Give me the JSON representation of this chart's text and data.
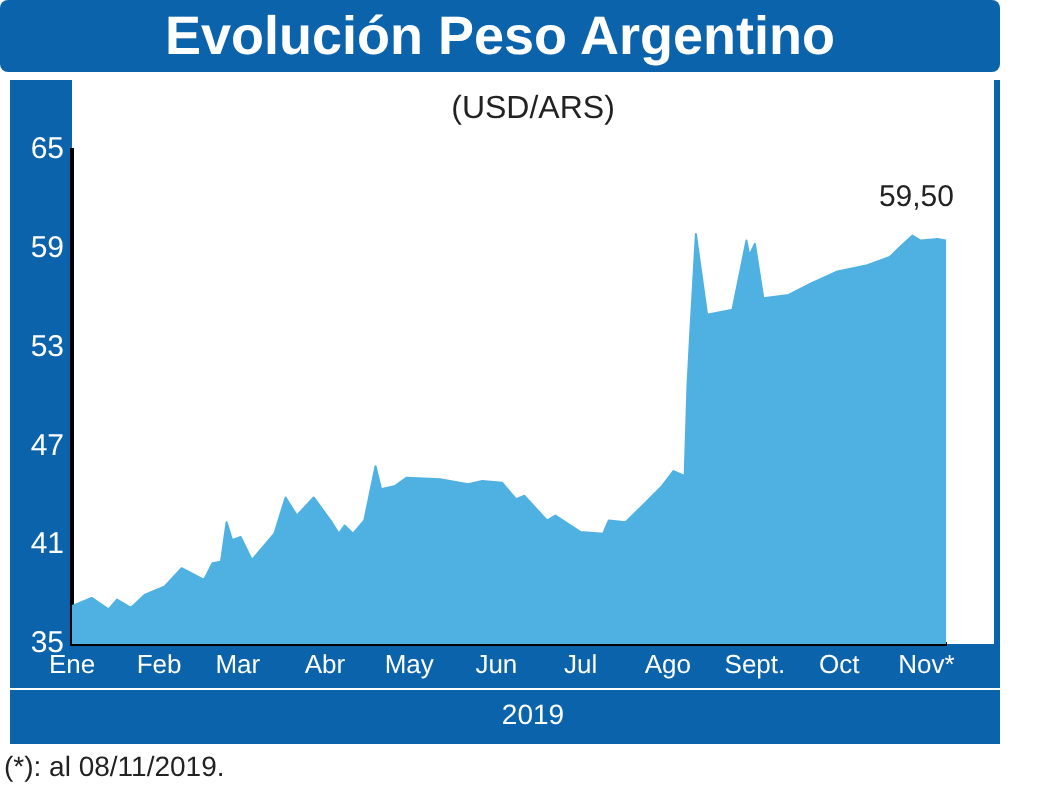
{
  "chart_data": {
    "type": "area",
    "title": "Evolución Peso Argentino",
    "subtitle": "(USD/ARS)",
    "xlabel": "2019",
    "x": [
      "2019-01-01",
      "2019-01-08",
      "2019-01-14",
      "2019-01-17",
      "2019-01-22",
      "2019-01-27",
      "2019-02-03",
      "2019-02-09",
      "2019-02-17",
      "2019-02-20",
      "2019-02-23",
      "2019-02-25",
      "2019-02-27",
      "2019-03-02",
      "2019-03-06",
      "2019-03-14",
      "2019-03-18",
      "2019-03-22",
      "2019-03-28",
      "2019-04-03",
      "2019-04-06",
      "2019-04-08",
      "2019-04-11",
      "2019-04-15",
      "2019-04-19",
      "2019-04-21",
      "2019-04-26",
      "2019-04-30",
      "2019-05-12",
      "2019-05-22",
      "2019-05-27",
      "2019-06-03",
      "2019-06-08",
      "2019-06-11",
      "2019-06-19",
      "2019-06-22",
      "2019-07-01",
      "2019-07-09",
      "2019-07-11",
      "2019-07-17",
      "2019-07-23",
      "2019-07-30",
      "2019-08-03",
      "2019-08-07",
      "2019-08-08",
      "2019-08-09",
      "2019-08-11",
      "2019-08-15",
      "2019-08-24",
      "2019-08-29",
      "2019-08-30",
      "2019-09-01",
      "2019-09-04",
      "2019-09-13",
      "2019-09-21",
      "2019-09-30",
      "2019-10-11",
      "2019-10-19",
      "2019-10-22",
      "2019-10-27",
      "2019-10-30",
      "2019-11-05",
      "2019-11-08"
    ],
    "series": [
      {
        "color": "#4fb1e2",
        "values": [
          37.3,
          37.8,
          37.1,
          37.7,
          37.2,
          38.0,
          38.5,
          39.6,
          38.9,
          39.9,
          40.0,
          42.4,
          41.3,
          41.5,
          40.1,
          41.7,
          43.9,
          42.8,
          43.9,
          42.5,
          41.7,
          42.2,
          41.7,
          42.5,
          45.8,
          44.4,
          44.6,
          45.1,
          45.0,
          44.7,
          44.9,
          44.8,
          43.8,
          44.0,
          42.5,
          42.8,
          41.8,
          41.7,
          42.5,
          42.4,
          43.4,
          44.6,
          45.5,
          45.2,
          50.7,
          53.9,
          59.9,
          55.0,
          55.3,
          59.5,
          58.6,
          59.3,
          56.0,
          56.2,
          56.9,
          57.6,
          58.0,
          58.5,
          59.0,
          59.8,
          59.5,
          59.6,
          59.5
        ]
      }
    ],
    "xlim": [
      "2019-01-01",
      "2019-11-08"
    ],
    "xticks": [
      {
        "value": "2019-01-01",
        "label": "Ene"
      },
      {
        "value": "2019-02-01",
        "label": "Feb"
      },
      {
        "value": "2019-03-01",
        "label": "Mar"
      },
      {
        "value": "2019-04-01",
        "label": "Abr"
      },
      {
        "value": "2019-05-01",
        "label": "May"
      },
      {
        "value": "2019-06-01",
        "label": "Jun"
      },
      {
        "value": "2019-07-01",
        "label": "Jul"
      },
      {
        "value": "2019-08-01",
        "label": "Ago"
      },
      {
        "value": "2019-09-01",
        "label": "Sept."
      },
      {
        "value": "2019-10-01",
        "label": "Oct"
      },
      {
        "value": "2019-11-01",
        "label": "Nov*"
      }
    ],
    "ylim": [
      35,
      65
    ],
    "yticks": [
      35,
      41,
      47,
      53,
      59,
      65
    ],
    "grid": false,
    "legend": false,
    "annotations": [
      {
        "text": "59,50",
        "x": "2019-11-08",
        "y": 59.5
      },
      "(*): al 08/11/2019."
    ]
  }
}
